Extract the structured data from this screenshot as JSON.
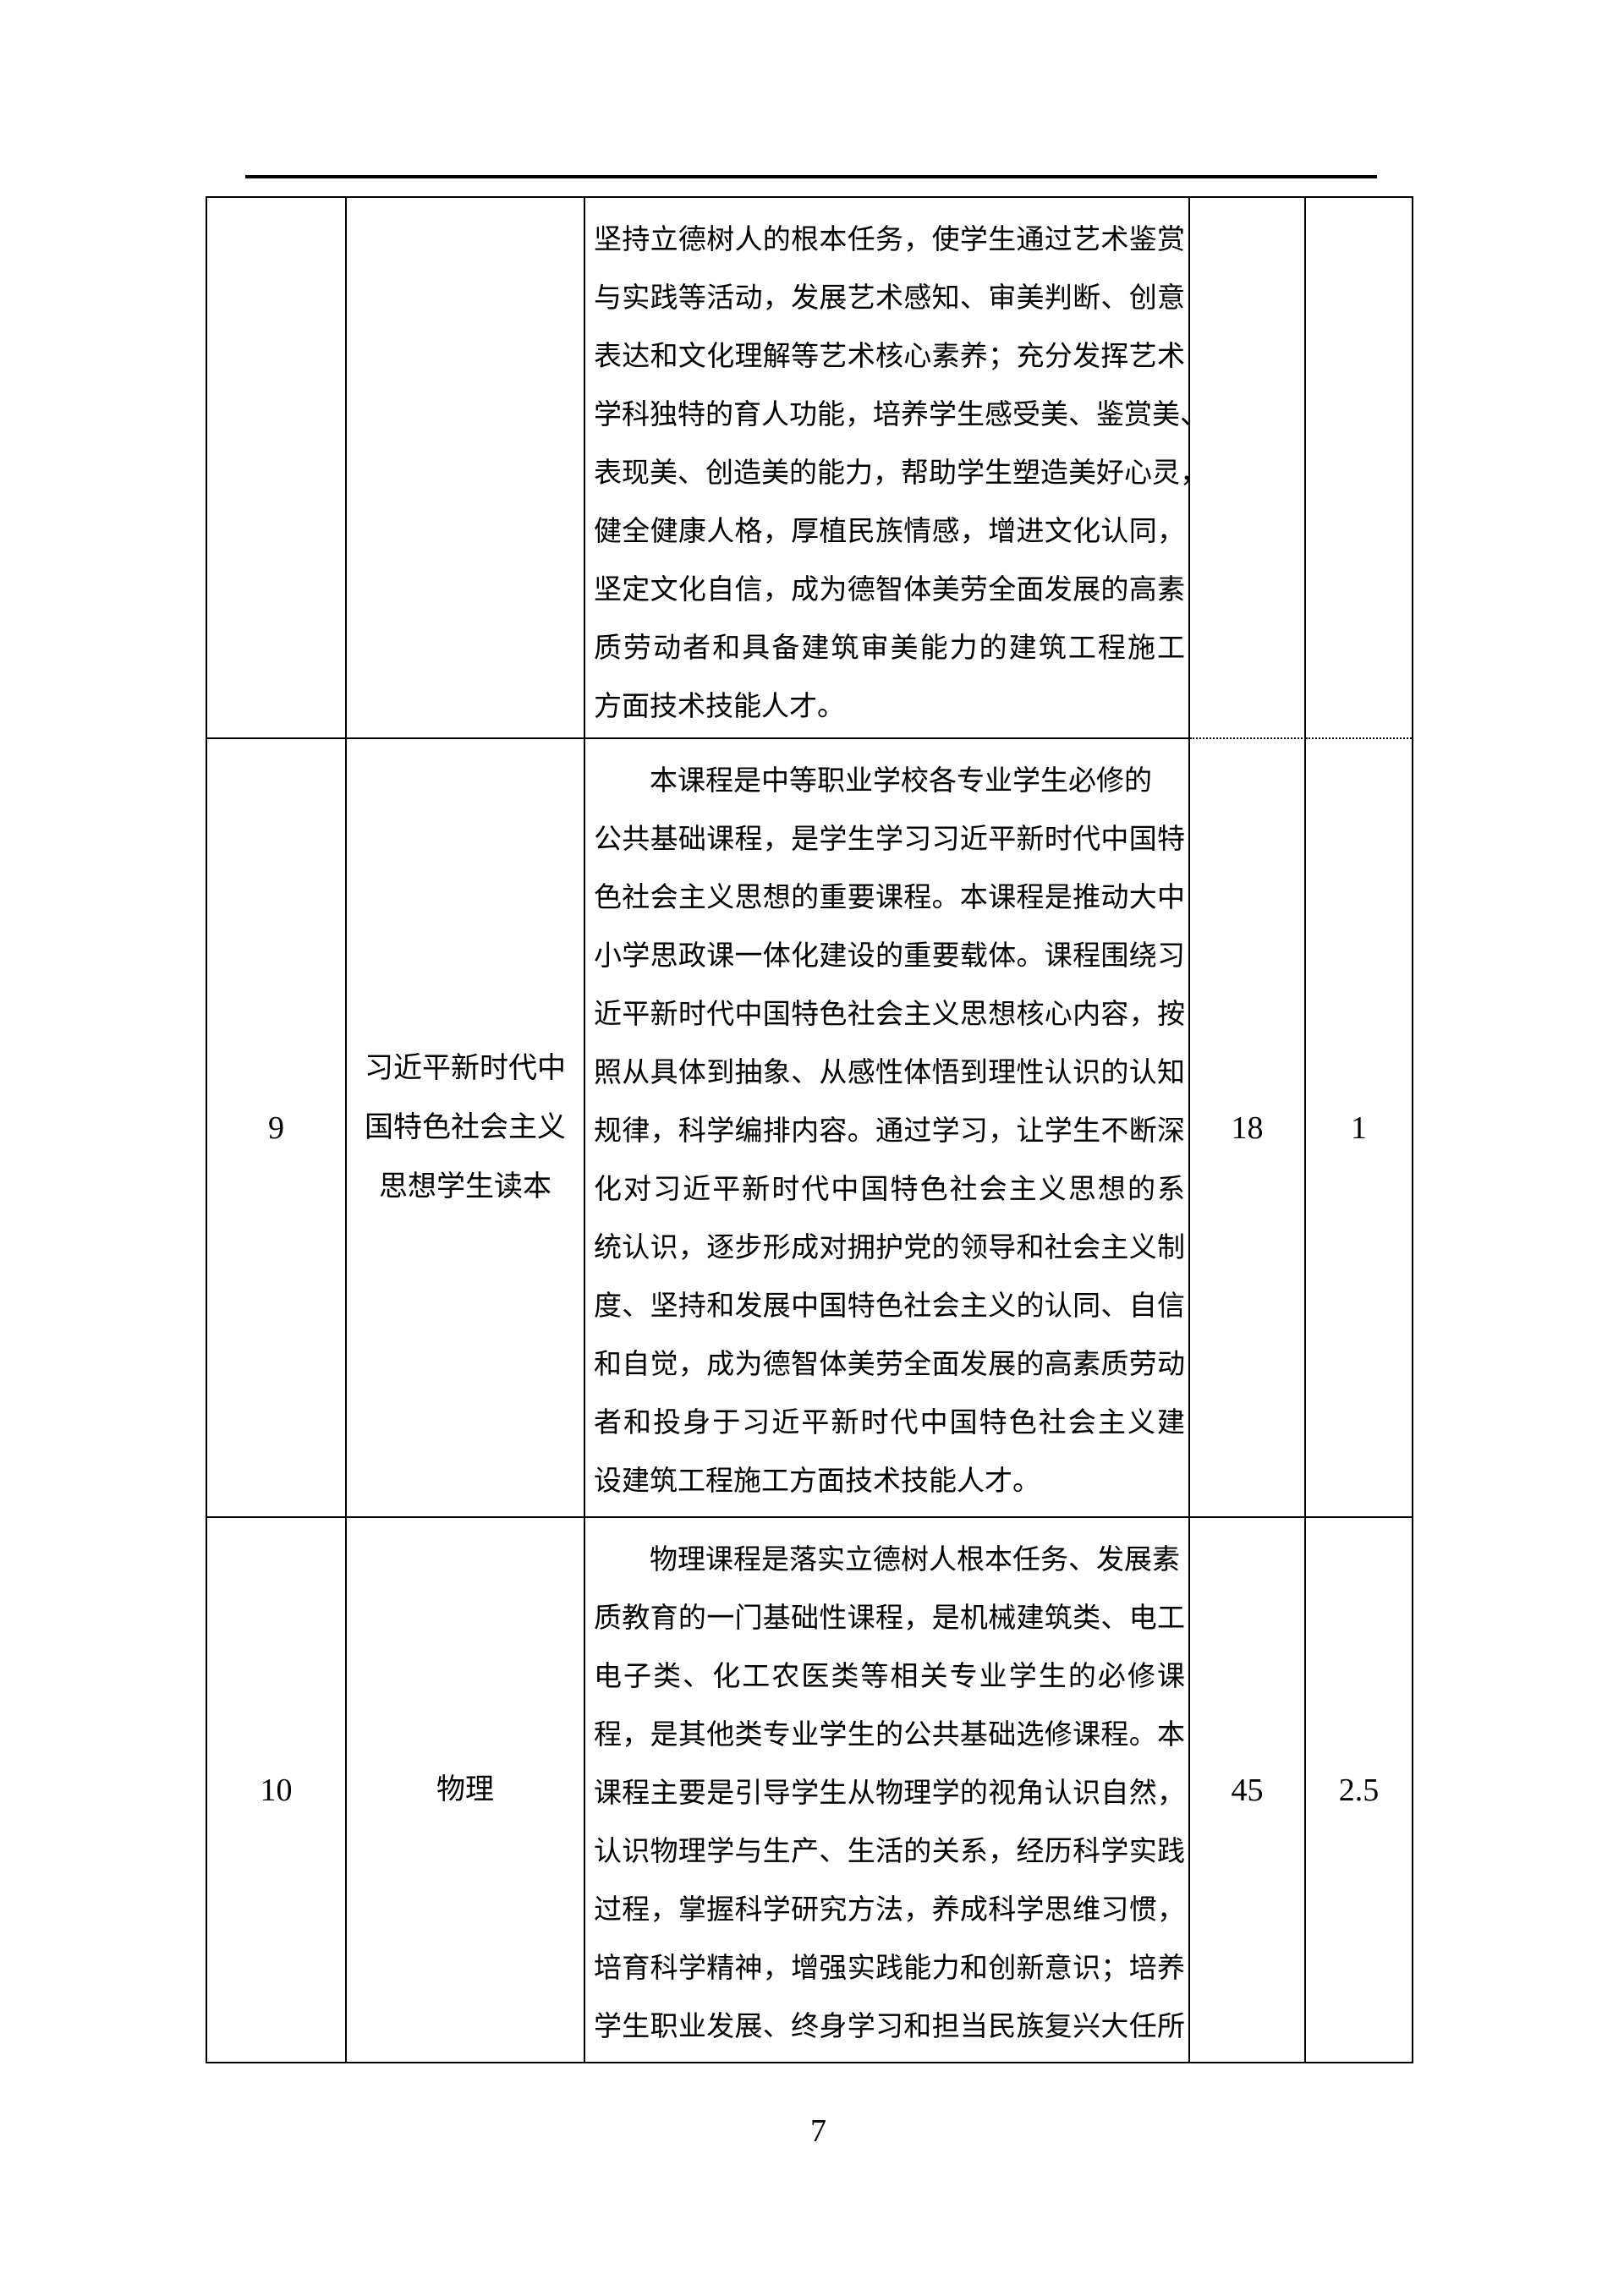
{
  "page": {
    "number": "7"
  },
  "table": {
    "rows": [
      {
        "no": "",
        "name": [],
        "desc": [
          "坚持立德树人的根本任务，使学生通过艺术鉴赏",
          "与实践等活动，发展艺术感知、审美判断、创意",
          "表达和文化理解等艺术核心素养；充分发挥艺术",
          "学科独特的育人功能，培养学生感受美、鉴赏美、",
          "表现美、创造美的能力，帮助学生塑造美好心灵，",
          "健全健康人格，厚植民族情感，增进文化认同，",
          "坚定文化自信，成为德智体美劳全面发展的高素",
          "质劳动者和具备建筑审美能力的建筑工程施工",
          "方面技术技能人才。"
        ],
        "hours": "",
        "credits": ""
      },
      {
        "no": "9",
        "name": [
          "习近平新时代中",
          "国特色社会主义",
          "思想学生读本"
        ],
        "desc": [
          "本课程是中等职业学校各专业学生必修的",
          "公共基础课程，是学生学习习近平新时代中国特",
          "色社会主义思想的重要课程。本课程是推动大中",
          "小学思政课一体化建设的重要载体。课程围绕习",
          "近平新时代中国特色社会主义思想核心内容，按",
          "照从具体到抽象、从感性体悟到理性认识的认知",
          "规律，科学编排内容。通过学习，让学生不断深",
          "化对习近平新时代中国特色社会主义思想的系",
          "统认识，逐步形成对拥护党的领导和社会主义制",
          "度、坚持和发展中国特色社会主义的认同、自信",
          "和自觉，成为德智体美劳全面发展的高素质劳动",
          "者和投身于习近平新时代中国特色社会主义建",
          "设建筑工程施工方面技术技能人才。"
        ],
        "hours": "18",
        "credits": "1"
      },
      {
        "no": "10",
        "name": [
          "物理"
        ],
        "desc": [
          "物理课程是落实立德树人根本任务、发展素",
          "质教育的一门基础性课程，是机械建筑类、电工",
          "电子类、化工农医类等相关专业学生的必修课",
          "程，是其他类专业学生的公共基础选修课程。本",
          "课程主要是引导学生从物理学的视角认识自然，",
          "认识物理学与生产、生活的关系，经历科学实践",
          "过程，掌握科学研究方法，养成科学思维习惯，",
          "培育科学精神，增强实践能力和创新意识；培养",
          "学生职业发展、终身学习和担当民族复兴大任所"
        ],
        "hours": "45",
        "credits": "2.5"
      }
    ]
  }
}
